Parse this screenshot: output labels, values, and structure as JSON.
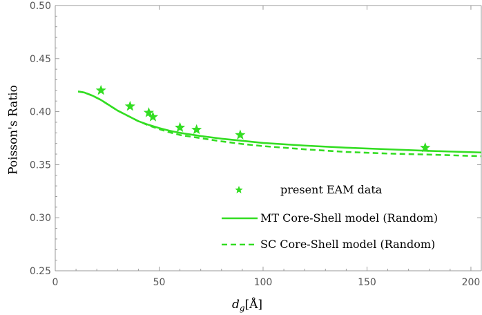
{
  "chart_data": {
    "type": "scatter+line",
    "title": "",
    "xlabel": "d_g[Å]",
    "xlabel_main": "d",
    "xlabel_sub": "g",
    "xlabel_unit": "[Å]",
    "ylabel": "Poisson's Ratio",
    "xlim": [
      0,
      205
    ],
    "ylim": [
      0.25,
      0.5
    ],
    "grid": false,
    "legend_position": "center-right",
    "x_ticks": [
      0,
      50,
      100,
      150,
      200
    ],
    "x_tick_labels": [
      "0",
      "50",
      "100",
      "150",
      "200"
    ],
    "y_ticks": [
      0.25,
      0.3,
      0.35,
      0.4,
      0.45,
      0.5
    ],
    "y_tick_labels": [
      "0.25",
      "0.30",
      "0.35",
      "0.40",
      "0.45",
      "0.50"
    ],
    "color": "#33dd22",
    "series": [
      {
        "name": "present EAM data",
        "kind": "scatter",
        "marker": "star",
        "x": [
          22,
          36,
          45,
          47,
          60,
          68,
          89,
          178
        ],
        "y": [
          0.42,
          0.405,
          0.399,
          0.395,
          0.385,
          0.383,
          0.378,
          0.366
        ]
      },
      {
        "name": "MT Core-Shell model (Random)",
        "kind": "line",
        "style": "solid",
        "x": [
          11,
          14,
          18,
          22,
          26,
          30,
          35,
          40,
          45,
          50,
          55,
          60,
          70,
          80,
          90,
          100,
          120,
          140,
          160,
          180,
          205
        ],
        "y": [
          0.419,
          0.418,
          0.415,
          0.411,
          0.406,
          0.401,
          0.396,
          0.391,
          0.3875,
          0.3845,
          0.382,
          0.38,
          0.377,
          0.3745,
          0.3725,
          0.3705,
          0.368,
          0.366,
          0.3645,
          0.363,
          0.3615
        ]
      },
      {
        "name": "SC Core-Shell model (Random)",
        "kind": "line",
        "style": "dashed",
        "x": [
          11,
          14,
          18,
          22,
          26,
          30,
          35,
          40,
          45,
          50,
          55,
          60,
          70,
          80,
          90,
          100,
          120,
          140,
          160,
          180,
          205
        ],
        "y": [
          0.419,
          0.418,
          0.415,
          0.411,
          0.406,
          0.401,
          0.396,
          0.391,
          0.387,
          0.3835,
          0.3805,
          0.378,
          0.375,
          0.372,
          0.3695,
          0.3675,
          0.3645,
          0.362,
          0.3605,
          0.3595,
          0.358
        ]
      }
    ]
  }
}
